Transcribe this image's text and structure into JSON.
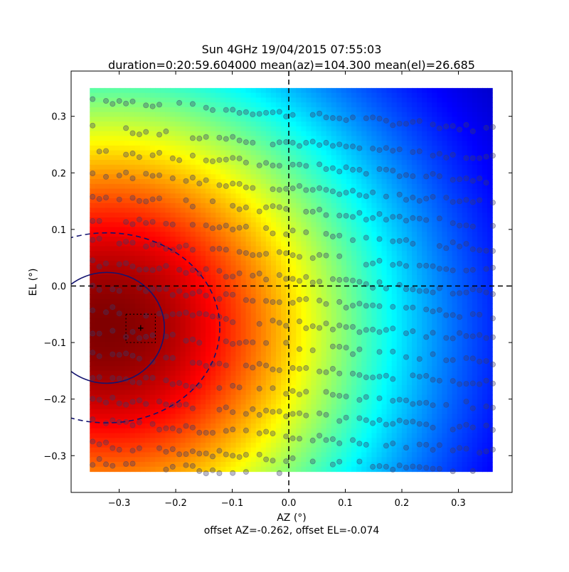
{
  "chart_data": {
    "type": "heatmap",
    "title_line1": "Sun 4GHz 19/04/2015 07:55:03",
    "title_line2": "duration=0:20:59.604000 mean(az)=104.300 mean(el)=26.685",
    "xlabel": "AZ (°)",
    "ylabel": "EL (°)",
    "footer": "offset AZ=-0.262, offset EL=-0.074",
    "xlim": [
      -0.385,
      0.395
    ],
    "ylim": [
      -0.365,
      0.38
    ],
    "heatmap_extent": {
      "x": [
        -0.352,
        0.36
      ],
      "y": [
        -0.328,
        0.35
      ]
    },
    "colormap": "jet",
    "x_ticks": [
      {
        "value": -0.3,
        "label": "−0.3"
      },
      {
        "value": -0.2,
        "label": "−0.2"
      },
      {
        "value": -0.1,
        "label": "−0.1"
      },
      {
        "value": 0.0,
        "label": "0.0"
      },
      {
        "value": 0.1,
        "label": "0.1"
      },
      {
        "value": 0.2,
        "label": "0.2"
      },
      {
        "value": 0.3,
        "label": "0.3"
      }
    ],
    "y_ticks": [
      {
        "value": -0.3,
        "label": "−0.3"
      },
      {
        "value": -0.2,
        "label": "−0.2"
      },
      {
        "value": -0.1,
        "label": "−0.1"
      },
      {
        "value": 0.0,
        "label": "0.0"
      },
      {
        "value": 0.1,
        "label": "0.1"
      },
      {
        "value": 0.2,
        "label": "0.2"
      },
      {
        "value": 0.3,
        "label": "0.3"
      }
    ],
    "center": {
      "az": -0.262,
      "el": -0.074
    },
    "half_power_ellipse": {
      "cx": -0.322,
      "cy": -0.074,
      "rx": 0.102,
      "ry": 0.098
    },
    "outer_ellipse": {
      "cx": -0.322,
      "cy": -0.074,
      "rx": 0.2,
      "ry": 0.168
    },
    "box": {
      "x": [
        -0.288,
        -0.236
      ],
      "y": [
        -0.1,
        -0.05
      ]
    },
    "crosshair": {
      "az": 0.0,
      "el": 0.0
    },
    "scan_rows": [
      0.33,
      0.28,
      0.24,
      0.2,
      0.16,
      0.12,
      0.08,
      0.04,
      0.0,
      -0.04,
      -0.08,
      -0.12,
      -0.16,
      -0.2,
      -0.24,
      -0.28,
      -0.31
    ],
    "colors": {
      "marker": "#3a3a6a",
      "ellipse": "#141470",
      "center": "#ff2020",
      "crosshair": "#000000"
    }
  }
}
